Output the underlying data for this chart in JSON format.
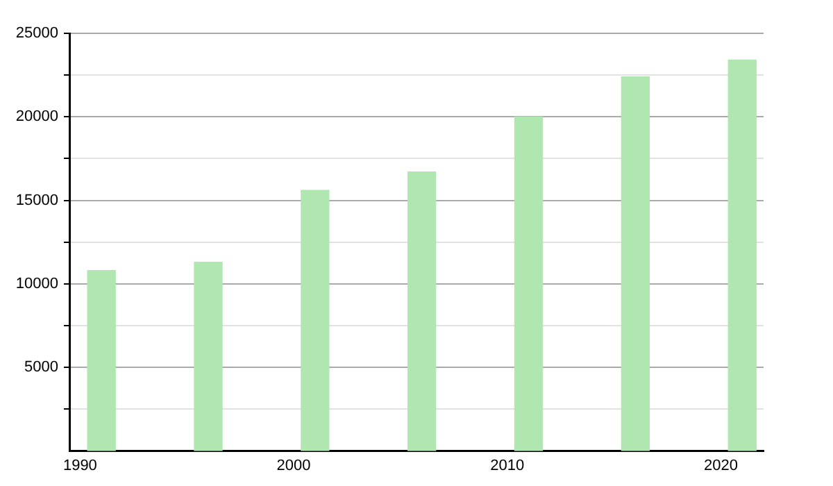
{
  "chart_data": {
    "type": "bar",
    "x": [
      1991,
      1996,
      2001,
      2006,
      2011,
      2016,
      2021
    ],
    "values": [
      10800,
      11300,
      15600,
      16700,
      20000,
      22400,
      23400
    ],
    "color": "#b0e6b0",
    "xlim": [
      1989.5,
      2022
    ],
    "xticks": [
      1990,
      2000,
      2010,
      2020
    ],
    "ylim": [
      0,
      25000
    ],
    "yticks": [
      {
        "value": 2500,
        "label": null
      },
      5000,
      {
        "value": 7500,
        "label": null
      },
      10000,
      {
        "value": 12500,
        "label": null
      },
      15000,
      {
        "value": 17500,
        "label": null
      },
      20000,
      {
        "value": 22500,
        "label": null
      },
      25000
    ],
    "grid": "y"
  }
}
